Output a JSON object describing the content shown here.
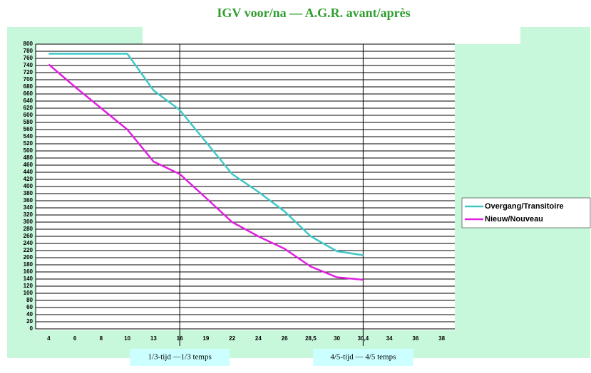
{
  "chart_data": {
    "type": "line",
    "title": "IGV voor/na — A.G.R. avant/après",
    "categories": [
      "4",
      "6",
      "8",
      "10",
      "13",
      "16",
      "19",
      "22",
      "24",
      "26",
      "28,5",
      "30",
      "30,4",
      "34",
      "36",
      "38"
    ],
    "series": [
      {
        "name": "Overgang/Transitoire",
        "color": "#40c8c8",
        "values": [
          773,
          773,
          773,
          773,
          670,
          615,
          525,
          435,
          385,
          330,
          260,
          218,
          207,
          null,
          null,
          null
        ]
      },
      {
        "name": "Nieuw/Nouveau",
        "color": "#e020e0",
        "values": [
          743,
          680,
          620,
          560,
          470,
          435,
          368,
          300,
          260,
          225,
          175,
          145,
          138,
          null,
          null,
          null
        ]
      }
    ],
    "ylim": [
      0,
      800
    ],
    "yticks": [
      0,
      20,
      40,
      60,
      80,
      100,
      120,
      140,
      160,
      180,
      200,
      220,
      240,
      260,
      280,
      300,
      320,
      340,
      360,
      380,
      400,
      420,
      440,
      460,
      480,
      500,
      520,
      540,
      560,
      580,
      600,
      620,
      640,
      660,
      680,
      700,
      720,
      740,
      760,
      780,
      800
    ],
    "grid": true,
    "legend": "right",
    "annotations": [
      {
        "label": "1/3-tijd —1/3 temps",
        "x": "16"
      },
      {
        "label": "4/5-tijd — 4/5 temps",
        "x": "30,4"
      }
    ]
  }
}
